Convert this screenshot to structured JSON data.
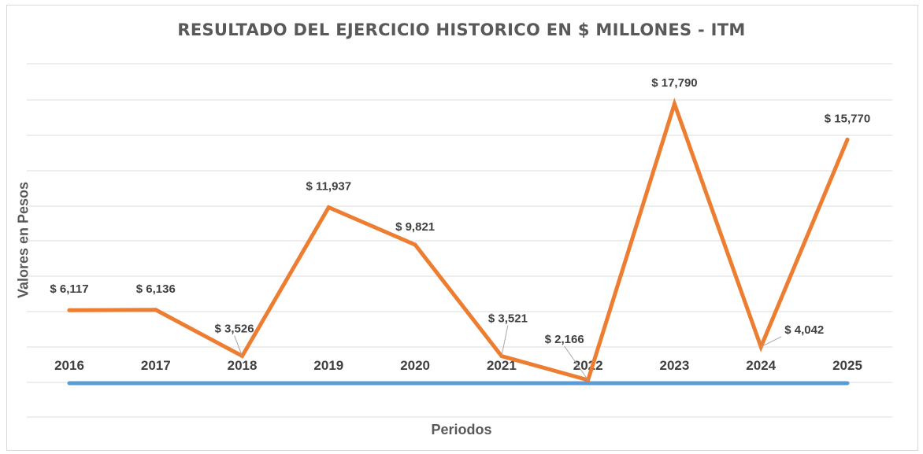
{
  "chart_data": {
    "type": "line",
    "title": "RESULTADO DEL EJERCICIO HISTORICO EN $ MILLONES - ITM",
    "xlabel": "Periodos",
    "ylabel": "Valores en Pesos",
    "categories": [
      "2016",
      "2017",
      "2018",
      "2019",
      "2020",
      "2021",
      "2022",
      "2023",
      "2024",
      "2025"
    ],
    "series": [
      {
        "values": [
          6117,
          6136,
          3526,
          11937,
          9821,
          3521,
          2166,
          17790,
          4042,
          15770
        ],
        "labels": [
          "$ 6,117",
          "$ 6,136",
          "$ 3,526",
          "$ 11,937",
          "$ 9,821",
          "$ 3,521",
          "$ 2,166",
          "$ 17,790",
          "$ 4,042",
          "$ 15,770"
        ],
        "color": "#ed7d31"
      }
    ],
    "baseline_color": "#5b9bd5",
    "ylim": [
      2000,
      18000
    ],
    "grid": true,
    "legend": "none"
  }
}
